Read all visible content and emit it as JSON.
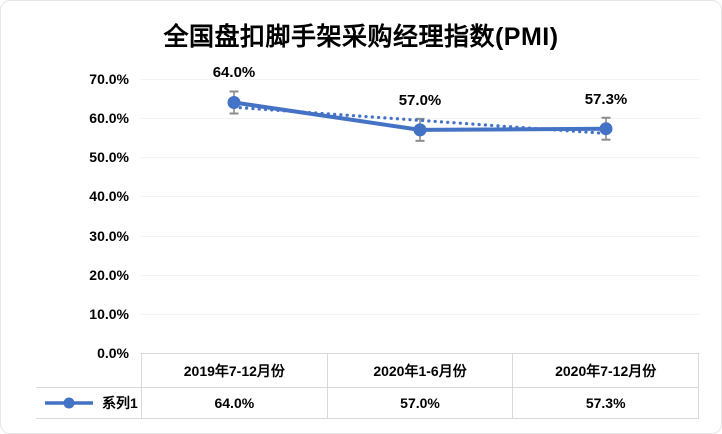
{
  "title": "全国盘扣脚手架采购经理指数(PMI)",
  "chart_data": {
    "type": "line",
    "title": "全国盘扣脚手架采购经理指数(PMI)",
    "categories": [
      "2019年7-12月份",
      "2020年1-6月份",
      "2020年7-12月份"
    ],
    "series": [
      {
        "name": "系列1",
        "values": [
          64.0,
          57.0,
          57.3
        ]
      }
    ],
    "data_labels": [
      "64.0%",
      "57.0%",
      "57.3%"
    ],
    "y_ticks": [
      "70.0%",
      "60.0%",
      "50.0%",
      "40.0%",
      "30.0%",
      "20.0%",
      "10.0%",
      "0.0%"
    ],
    "ylim": [
      0,
      70
    ],
    "y_step": 10,
    "grid": true,
    "error_bar_pct": 2.8,
    "trendline": "linear-dotted",
    "legend_position": "bottom-table",
    "table_values": [
      "64.0%",
      "57.0%",
      "57.3%"
    ],
    "colors": {
      "series": "#4472C4",
      "error_bar": "#8C8C8C",
      "grid": "#F3F3F3",
      "table_border": "#D9D9D9",
      "text": "#000000"
    }
  }
}
